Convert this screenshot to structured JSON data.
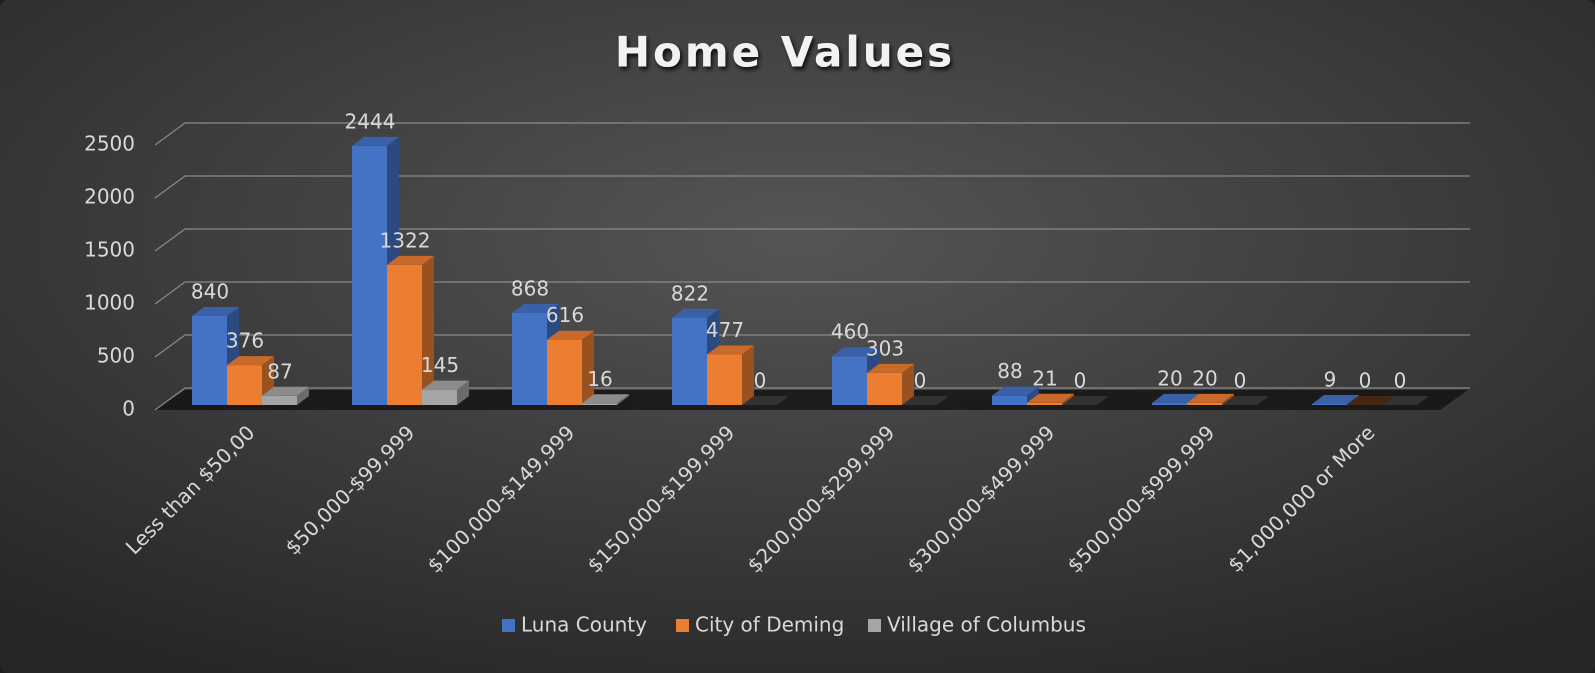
{
  "chart_data": {
    "type": "bar3d",
    "title": "Home Values",
    "categories": [
      "Less than $50,00",
      "$50,000-$99,999",
      "$100,000-$149,999",
      "$150,000-$199,999",
      "$200,000-$299,999",
      "$300,000-$499,999",
      "$500,000-$999,999",
      "$1,000,000 or More"
    ],
    "series": [
      {
        "name": "Luna County",
        "color": "#4472c4",
        "values": [
          840,
          2444,
          868,
          822,
          460,
          88,
          20,
          9
        ]
      },
      {
        "name": "City of Deming",
        "color": "#ed7d31",
        "values": [
          376,
          1322,
          616,
          477,
          303,
          21,
          20,
          0
        ]
      },
      {
        "name": "Village of Columbus",
        "color": "#a5a5a5",
        "values": [
          87,
          145,
          16,
          0,
          0,
          0,
          0,
          0
        ]
      }
    ],
    "ylim": [
      0,
      2500
    ],
    "yticks": [
      0,
      500,
      1000,
      1500,
      2000,
      2500
    ],
    "grid": true,
    "legend": "bottom"
  }
}
